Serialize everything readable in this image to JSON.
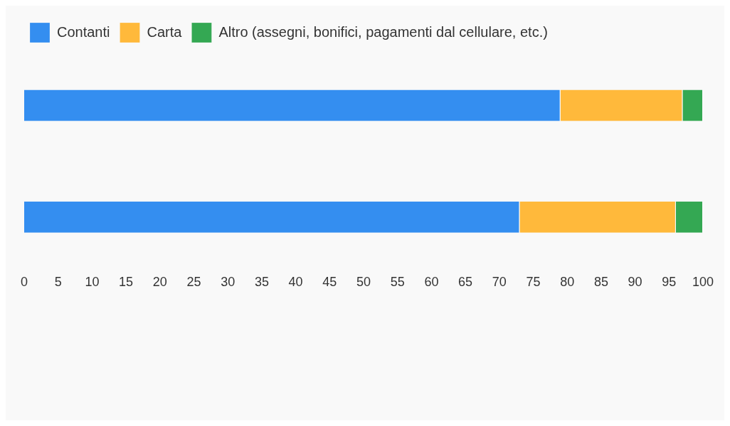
{
  "chart_data": {
    "type": "bar",
    "orientation": "horizontal",
    "stacked": true,
    "categories": [
      null,
      null
    ],
    "series": [
      {
        "name": "Contanti",
        "color": "#348ef0",
        "values": [
          79,
          73
        ]
      },
      {
        "name": "Carta",
        "color": "#ffb93b",
        "values": [
          18,
          23
        ]
      },
      {
        "name": "Altro (assegni, bonifici, pagamenti dal cellulare, etc.)",
        "color": "#34a853",
        "values": [
          3,
          4
        ]
      }
    ],
    "xlim": [
      0,
      100
    ],
    "xticks": [
      0,
      5,
      10,
      15,
      20,
      25,
      30,
      35,
      40,
      45,
      50,
      55,
      60,
      65,
      70,
      75,
      80,
      85,
      90,
      95,
      100
    ],
    "grid": false,
    "legend": "top"
  }
}
